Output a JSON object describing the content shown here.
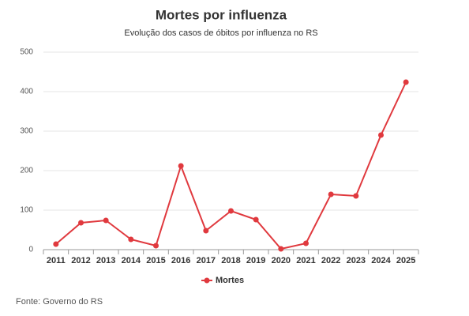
{
  "chart_data": {
    "type": "line",
    "title": "Mortes por influenza",
    "subtitle": "Evolução dos casos de óbitos por influenza no RS",
    "categories": [
      "2011",
      "2012",
      "2013",
      "2014",
      "2015",
      "2016",
      "2017",
      "2018",
      "2019",
      "2020",
      "2021",
      "2022",
      "2023",
      "2024",
      "2025"
    ],
    "series": [
      {
        "name": "Mortes",
        "color": "#e0393e",
        "values": [
          14,
          68,
          74,
          26,
          10,
          212,
          48,
          98,
          76,
          2,
          16,
          140,
          136,
          290,
          424
        ]
      }
    ],
    "ylim": [
      0,
      500
    ],
    "yticks": [
      0,
      100,
      200,
      300,
      400,
      500
    ],
    "grid": true,
    "legend": "bottom",
    "source": "Fonte: Governo do RS"
  }
}
